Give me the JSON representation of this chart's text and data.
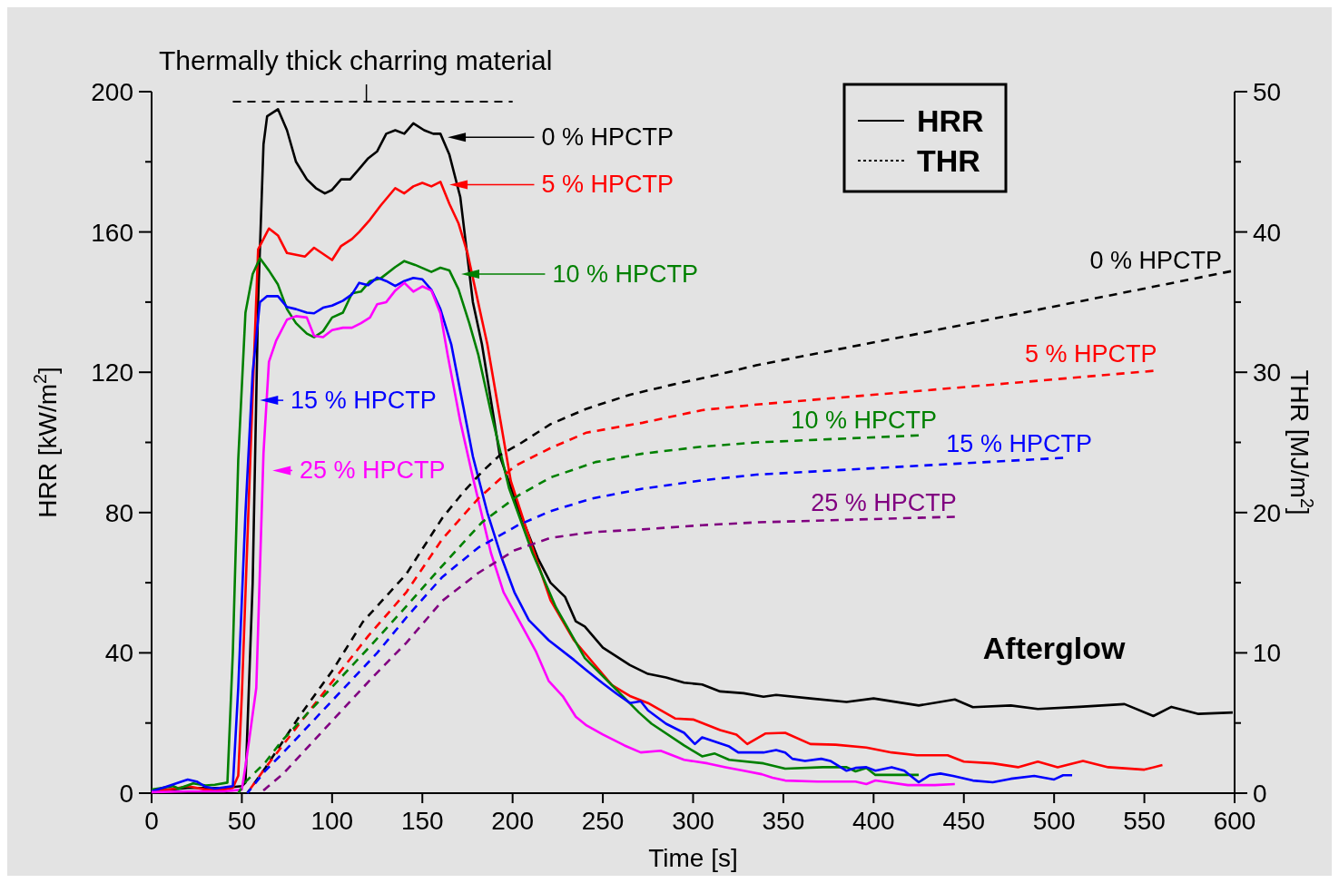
{
  "chart_data": {
    "type": "line",
    "xlabel": "Time [s]",
    "ylabel": "HRR [kW/m$^{2}$]",
    "y2label": "THR [MJ/m$^{2}$]",
    "xlim": [
      0,
      600
    ],
    "xticks": [
      0,
      50,
      100,
      150,
      200,
      250,
      300,
      350,
      400,
      450,
      500,
      550,
      600
    ],
    "ylim": [
      0,
      200
    ],
    "yticks": [
      0,
      {
        "value": 20,
        "label": null
      },
      40,
      {
        "value": 60,
        "label": null
      },
      80,
      {
        "value": 100,
        "label": null
      },
      120,
      {
        "value": 140,
        "label": null
      },
      160,
      {
        "value": 180,
        "label": null
      },
      200
    ],
    "y2lim": [
      0,
      50
    ],
    "y2ticks": [
      0,
      {
        "value": 5,
        "label": null
      },
      10,
      {
        "value": 15,
        "label": null
      },
      20,
      {
        "value": 25,
        "label": null
      },
      30,
      {
        "value": 35,
        "label": null
      },
      40,
      {
        "value": 45,
        "label": null
      },
      50
    ],
    "grid": false,
    "legend": "top left",
    "marker": "none",
    "annotations": [
      "Thermally thick charring material",
      "Afterglow",
      "HRR",
      "THR"
    ],
    "series": [
      {
        "name": "0 % HPCTP",
        "color": "#000000",
        "line_style": "solid",
        "x": [
          0,
          10,
          20,
          30,
          40,
          50,
          52,
          56,
          59,
          62,
          64,
          70,
          75,
          80,
          86,
          91,
          96,
          100,
          105,
          110,
          115,
          120,
          125,
          130,
          135,
          140,
          145,
          151,
          156,
          160,
          165,
          171,
          178,
          183,
          193,
          204,
          214,
          221,
          229,
          235,
          240,
          250,
          265,
          275,
          285,
          295,
          305,
          315,
          328,
          339,
          346,
          365,
          385,
          400,
          425,
          445,
          455,
          476,
          491,
          514,
          539,
          555,
          565,
          580,
          599
        ],
        "values": [
          0.5,
          1,
          1.5,
          1.5,
          1.5,
          2,
          3,
          60,
          140,
          185,
          193,
          195,
          189,
          180,
          175,
          172.5,
          171,
          172,
          175,
          175,
          178,
          181,
          183,
          188,
          189,
          188,
          191,
          189,
          188,
          188,
          182,
          170,
          140,
          128,
          96,
          80,
          67,
          60,
          56,
          49,
          47.5,
          41.5,
          36.5,
          34,
          33,
          31.5,
          31,
          29,
          28.5,
          27.5,
          28,
          27,
          26,
          27,
          25,
          26.7,
          24.5,
          25,
          24,
          24.6,
          25.4,
          22,
          24.6,
          22.6,
          23
        ]
      },
      {
        "name": "5 % HPCTP",
        "color": "#ff0000",
        "line_style": "solid",
        "x": [
          0,
          13,
          20,
          30,
          40,
          45,
          48,
          50,
          55,
          59,
          65,
          70,
          75,
          85,
          90,
          100,
          105,
          111,
          115,
          121,
          127,
          135,
          140,
          145,
          150,
          155,
          160,
          165,
          170,
          175,
          183,
          186,
          199,
          211,
          221,
          234,
          255,
          265,
          275,
          290,
          300,
          315,
          324,
          330,
          340,
          351,
          365,
          379,
          396,
          410,
          424,
          441,
          450,
          466,
          480,
          491,
          502,
          516,
          530,
          550,
          560
        ],
        "values": [
          0.5,
          1.3,
          2,
          1,
          1,
          1.5,
          5,
          28,
          100,
          155,
          161,
          159,
          154,
          153,
          155.5,
          152,
          156,
          158,
          160,
          163.5,
          167.6,
          172.5,
          171,
          173,
          174,
          173,
          174.3,
          168,
          162.5,
          154,
          135,
          128,
          89,
          70,
          55,
          43.6,
          30.8,
          27.7,
          25.7,
          21.3,
          21,
          18,
          16.7,
          14,
          17,
          17.2,
          14,
          13.8,
          13,
          11.6,
          10.8,
          10.8,
          9,
          8.5,
          7.4,
          9,
          7.4,
          9.2,
          7.4,
          6.7,
          8
        ]
      },
      {
        "name": "10 % HPCTP",
        "color": "#008000",
        "line_style": "solid",
        "x": [
          0,
          12,
          15,
          23,
          30,
          35,
          42,
          45,
          48,
          52,
          56,
          60,
          65,
          70,
          75,
          80,
          86,
          90,
          95,
          100,
          106,
          111,
          116,
          121,
          127,
          135,
          140,
          146,
          155,
          160,
          165,
          170,
          176,
          181,
          188,
          198,
          211,
          224,
          240,
          255,
          270,
          277,
          295,
          305,
          312,
          320,
          339,
          351,
          372,
          385,
          390,
          396,
          401,
          412,
          425
        ],
        "values": [
          1,
          2,
          1.3,
          2.8,
          2.2,
          2.4,
          3,
          40,
          95,
          137,
          148,
          152.5,
          149,
          145,
          138,
          134,
          131,
          130,
          131.7,
          135.6,
          137,
          142.5,
          143,
          146,
          146.8,
          150,
          151.7,
          150.6,
          148.6,
          149.8,
          149,
          143.7,
          134,
          125,
          108.6,
          87,
          68.5,
          53,
          38.5,
          30.8,
          23,
          19.8,
          13.6,
          10.5,
          11.3,
          9.5,
          8.5,
          7,
          7.4,
          7.4,
          6.2,
          7.2,
          5.2,
          5.2,
          5.2
        ]
      },
      {
        "name": "15 % HPCTP",
        "color": "#0000ff",
        "line_style": "solid",
        "x": [
          0,
          8,
          20,
          25,
          30,
          35,
          45,
          48,
          52,
          56,
          60,
          64,
          70,
          75,
          80,
          86,
          90,
          95,
          100,
          106,
          111,
          115,
          120,
          125,
          130,
          135,
          140,
          145,
          150,
          155,
          160,
          166,
          178,
          186,
          194,
          201,
          209,
          220,
          234,
          241,
          250,
          258,
          265,
          271,
          275,
          285,
          295,
          301,
          305,
          320,
          325,
          339,
          346,
          351,
          355,
          362,
          371,
          376,
          385,
          390,
          396,
          401,
          410,
          417,
          425,
          431,
          437,
          444,
          455,
          466,
          476,
          489,
          500,
          505,
          510
        ],
        "values": [
          0.5,
          1.8,
          3.9,
          3.3,
          1.8,
          1.3,
          2,
          30,
          80,
          120,
          140,
          141.7,
          141.7,
          138.6,
          138,
          137,
          136.8,
          138.4,
          139,
          140.4,
          142.2,
          145.5,
          144.8,
          147,
          146,
          144.6,
          146,
          146.9,
          146.5,
          143.5,
          138,
          128,
          96,
          80,
          67,
          57.3,
          49.3,
          43.6,
          38,
          35,
          31.3,
          28.2,
          25.7,
          26.2,
          23.6,
          19.8,
          17.2,
          14,
          15.9,
          13.3,
          11.6,
          11.6,
          12.3,
          11.6,
          9.8,
          9.2,
          9.8,
          9.2,
          6.4,
          7.2,
          7.4,
          6.4,
          7.4,
          6.4,
          3.1,
          5.1,
          5.6,
          4.9,
          3.6,
          3.1,
          4.1,
          4.9,
          3.9,
          5.1,
          5.1
        ]
      },
      {
        "name": "25 % HPCTP",
        "color": "#ff00ff",
        "line_style": "solid",
        "x": [
          0,
          20,
          40,
          50,
          52,
          54,
          58,
          62,
          65,
          69,
          75,
          80,
          86,
          90,
          95,
          100,
          106,
          111,
          116,
          121,
          125,
          130,
          135,
          140,
          145,
          150,
          155,
          160,
          164,
          171,
          178,
          188,
          195,
          204,
          213,
          220,
          228,
          235,
          241,
          250,
          262,
          271,
          282,
          295,
          308,
          318,
          328,
          338,
          344,
          351,
          369,
          390,
          396,
          401,
          419,
          434,
          445
        ],
        "values": [
          0.3,
          0.5,
          0.5,
          1,
          7.7,
          15,
          30,
          97,
          123,
          129,
          135,
          136,
          135.6,
          130.4,
          130,
          132,
          132.7,
          132.7,
          134,
          135.6,
          139.4,
          140,
          143.3,
          145.5,
          143,
          144.5,
          143.3,
          136.8,
          125,
          106,
          90,
          68.5,
          57.3,
          48.8,
          40.3,
          32,
          27.5,
          21.8,
          19.3,
          16.7,
          13.6,
          11.6,
          12.1,
          9.5,
          8.5,
          7.4,
          6.4,
          5.4,
          4.4,
          3.6,
          3.3,
          3.3,
          2.6,
          3.6,
          2.3,
          2.3,
          2.6
        ]
      },
      {
        "name": "0 % HPCTP",
        "color": "#000000",
        "line_style": "dashed",
        "axis": "y2",
        "x": [
          53,
          63,
          82,
          100,
          117,
          141,
          161,
          173,
          183,
          193,
          204,
          221,
          241,
          265,
          288,
          313,
          335,
          419,
          520,
          598
        ],
        "values": [
          0,
          1.8,
          5.5,
          8.7,
          12.2,
          15.6,
          19.6,
          21.5,
          22.9,
          24.1,
          24.9,
          26.3,
          27.4,
          28.4,
          29.1,
          29.8,
          30.5,
          32.6,
          35.2,
          37.2
        ]
      },
      {
        "name": "5 % HPCTP",
        "color": "#ff0000",
        "line_style": "dashed",
        "axis": "y2",
        "x": [
          53,
          63,
          87,
          120,
          141,
          161,
          181,
          201,
          221,
          241,
          272,
          305,
          335,
          419,
          555
        ],
        "values": [
          0,
          1.8,
          5.8,
          11.2,
          14.3,
          18.1,
          21,
          23.3,
          24.6,
          25.7,
          26.4,
          27.3,
          27.7,
          28.6,
          30.1
        ]
      },
      {
        "name": "10 % HPCTP",
        "color": "#008000",
        "line_style": "dashed",
        "axis": "y2",
        "x": [
          48,
          52,
          63,
          72,
          122,
          141,
          161,
          183,
          203,
          221,
          246,
          272,
          305,
          335,
          425
        ],
        "values": [
          0,
          0.8,
          2.2,
          3.7,
          10.6,
          13.3,
          16.2,
          19.3,
          21.2,
          22.5,
          23.6,
          24.2,
          24.7,
          25,
          25.5
        ]
      },
      {
        "name": "15 % HPCTP",
        "color": "#0000ff",
        "line_style": "dashed",
        "axis": "y2",
        "x": [
          53,
          63,
          73,
          125,
          141,
          161,
          181,
          203,
          221,
          244,
          272,
          305,
          335,
          505
        ],
        "values": [
          0,
          1.6,
          2.9,
          10,
          12.5,
          15.4,
          17.5,
          19.1,
          20.1,
          21,
          21.7,
          22.3,
          22.7,
          23.9
        ]
      },
      {
        "name": "25 % HPCTP",
        "color": "#800080",
        "line_style": "dashed",
        "axis": "y2",
        "x": [
          60,
          63,
          73,
          122,
          141,
          161,
          181,
          201,
          221,
          244,
          272,
          305,
          335,
          445
        ],
        "values": [
          0,
          0.3,
          1.4,
          8.2,
          10.7,
          13.7,
          15.7,
          17.3,
          18.2,
          18.6,
          18.8,
          19.1,
          19.3,
          19.7
        ]
      }
    ]
  }
}
